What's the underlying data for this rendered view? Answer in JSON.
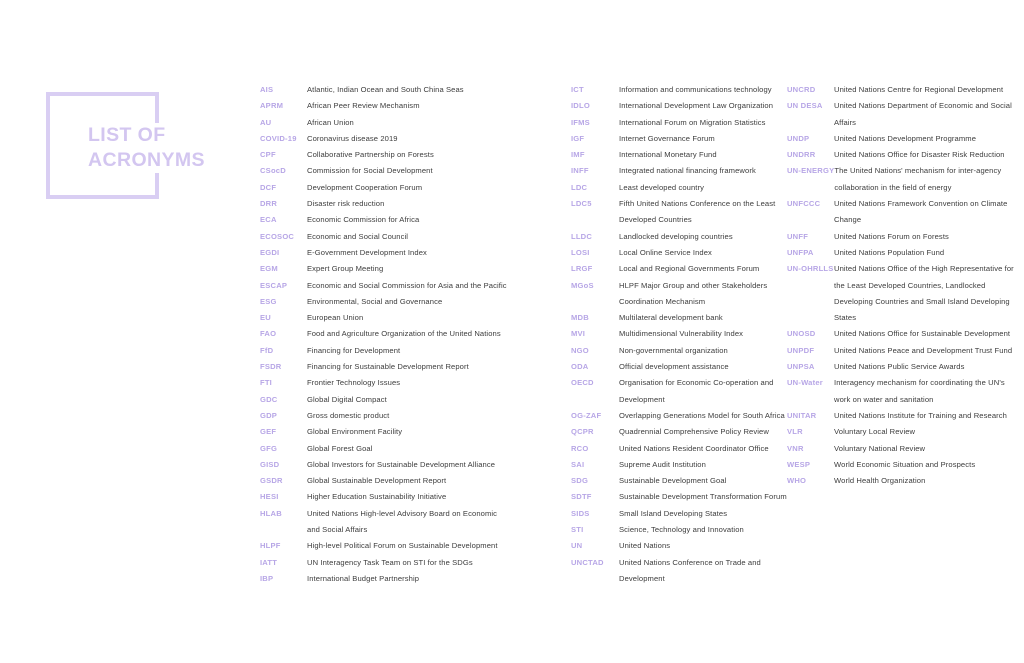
{
  "page": {
    "title_line1": "LIST OF",
    "title_line2": "ACRONYMS"
  },
  "colors": {
    "accent_acronym": "#b7a6e6",
    "logo_lavender": "#d9cef3",
    "definition_text": "#3d3d3d",
    "background": "#ffffff"
  },
  "columns": [
    {
      "entries": [
        {
          "acronym": "AIS",
          "definition": "Atlantic, Indian Ocean and South China Seas"
        },
        {
          "acronym": "APRM",
          "definition": "African Peer Review Mechanism"
        },
        {
          "acronym": "AU",
          "definition": "African Union"
        },
        {
          "acronym": "COVID-19",
          "definition": "Coronavirus disease 2019"
        },
        {
          "acronym": "CPF",
          "definition": "Collaborative Partnership on Forests"
        },
        {
          "acronym": "CSocD",
          "definition": "Commission for Social Development"
        },
        {
          "acronym": "DCF",
          "definition": "Development Cooperation Forum"
        },
        {
          "acronym": "DRR",
          "definition": "Disaster risk reduction"
        },
        {
          "acronym": "ECA",
          "definition": "Economic Commission for Africa"
        },
        {
          "acronym": "ECOSOC",
          "definition": "Economic and Social Council"
        },
        {
          "acronym": "EGDI",
          "definition": "E-Government Development Index"
        },
        {
          "acronym": "EGM",
          "definition": "Expert Group Meeting"
        },
        {
          "acronym": "ESCAP",
          "definition": "Economic and Social Commission for Asia and the Pacific"
        },
        {
          "acronym": "ESG",
          "definition": "Environmental, Social and Governance"
        },
        {
          "acronym": "EU",
          "definition": "European Union"
        },
        {
          "acronym": "FAO",
          "definition": "Food and Agriculture Organization of the United Nations"
        },
        {
          "acronym": "FfD",
          "definition": "Financing for Development"
        },
        {
          "acronym": "FSDR",
          "definition": "Financing for Sustainable Development Report"
        },
        {
          "acronym": "FTI",
          "definition": "Frontier Technology Issues"
        },
        {
          "acronym": "GDC",
          "definition": "Global Digital Compact"
        },
        {
          "acronym": "GDP",
          "definition": "Gross domestic product"
        },
        {
          "acronym": "GEF",
          "definition": "Global Environment Facility"
        },
        {
          "acronym": "GFG",
          "definition": "Global Forest Goal"
        },
        {
          "acronym": "GISD",
          "definition": "Global Investors for Sustainable Development Alliance"
        },
        {
          "acronym": "GSDR",
          "definition": "Global Sustainable Development Report"
        },
        {
          "acronym": "HESI",
          "definition": "Higher Education Sustainability Initiative"
        },
        {
          "acronym": "HLAB",
          "definition": "United Nations High-level Advisory Board on Economic and Social Affairs"
        },
        {
          "acronym": "HLPF",
          "definition": "High-level Political Forum on Sustainable Development"
        },
        {
          "acronym": "IATT",
          "definition": "UN Interagency Task Team on STI for the SDGs"
        },
        {
          "acronym": "IBP",
          "definition": "International Budget Partnership"
        }
      ]
    },
    {
      "entries": [
        {
          "acronym": "ICT",
          "definition": "Information and communications technology"
        },
        {
          "acronym": "IDLO",
          "definition": "International Development Law Organization"
        },
        {
          "acronym": "IFMS",
          "definition": "International Forum on Migration Statistics"
        },
        {
          "acronym": "IGF",
          "definition": "Internet Governance Forum"
        },
        {
          "acronym": "IMF",
          "definition": "International Monetary Fund"
        },
        {
          "acronym": "INFF",
          "definition": "Integrated national financing framework"
        },
        {
          "acronym": "LDC",
          "definition": "Least developed country"
        },
        {
          "acronym": "LDC5",
          "definition": "Fifth United Nations Conference on the Least Developed Countries"
        },
        {
          "acronym": "LLDC",
          "definition": "Landlocked developing countries"
        },
        {
          "acronym": "LOSI",
          "definition": "Local Online Service Index"
        },
        {
          "acronym": "LRGF",
          "definition": "Local and Regional Governments Forum"
        },
        {
          "acronym": "MGoS",
          "definition": "HLPF Major Group and other Stakeholders Coordination Mechanism"
        },
        {
          "acronym": "MDB",
          "definition": "Multilateral development bank"
        },
        {
          "acronym": "MVI",
          "definition": "Multidimensional Vulnerability Index"
        },
        {
          "acronym": "NGO",
          "definition": "Non-governmental organization"
        },
        {
          "acronym": "ODA",
          "definition": "Official development assistance"
        },
        {
          "acronym": "OECD",
          "definition": "Organisation for Economic Co-operation and Development"
        },
        {
          "acronym": "OG-ZAF",
          "definition": "Overlapping Generations Model for South Africa"
        },
        {
          "acronym": "QCPR",
          "definition": "Quadrennial Comprehensive Policy Review"
        },
        {
          "acronym": "RCO",
          "definition": "United Nations Resident Coordinator Office"
        },
        {
          "acronym": "SAI",
          "definition": "Supreme Audit Institution"
        },
        {
          "acronym": "SDG",
          "definition": "Sustainable Development Goal"
        },
        {
          "acronym": "SDTF",
          "definition": "Sustainable Development Transformation Forum"
        },
        {
          "acronym": "SIDS",
          "definition": "Small Island Developing States"
        },
        {
          "acronym": "STI",
          "definition": "Science, Technology and Innovation"
        },
        {
          "acronym": "UN",
          "definition": "United Nations"
        },
        {
          "acronym": "UNCTAD",
          "definition": "United Nations Conference on Trade and Development"
        }
      ]
    },
    {
      "entries": [
        {
          "acronym": "UNCRD",
          "definition": "United Nations Centre for Regional Development"
        },
        {
          "acronym": "UN DESA",
          "definition": "United Nations Department of Economic and Social Affairs"
        },
        {
          "acronym": "UNDP",
          "definition": "United Nations Development Programme"
        },
        {
          "acronym": "UNDRR",
          "definition": "United Nations Office for Disaster Risk Reduction"
        },
        {
          "acronym": "UN-ENERGY",
          "definition": "The United Nations' mechanism for inter-agency collaboration in the field of energy"
        },
        {
          "acronym": "UNFCCC",
          "definition": "United Nations Framework Convention on Climate Change"
        },
        {
          "acronym": "UNFF",
          "definition": "United Nations Forum on Forests"
        },
        {
          "acronym": "UNFPA",
          "definition": "United Nations Population Fund"
        },
        {
          "acronym": "UN-OHRLLS",
          "definition": "United Nations Office of the High Representative for the Least Developed Countries, Landlocked Developing Countries and Small Island Developing States"
        },
        {
          "acronym": "UNOSD",
          "definition": "United Nations Office for Sustainable Development"
        },
        {
          "acronym": "UNPDF",
          "definition": "United Nations Peace and Development Trust Fund"
        },
        {
          "acronym": "UNPSA",
          "definition": "United Nations Public Service Awards"
        },
        {
          "acronym": "UN-Water",
          "definition": "Interagency mechanism for coordinating the UN's work on water and sanitation"
        },
        {
          "acronym": "UNITAR",
          "definition": "United Nations Institute for Training and Research"
        },
        {
          "acronym": "VLR",
          "definition": "Voluntary Local Review"
        },
        {
          "acronym": "VNR",
          "definition": "Voluntary National Review"
        },
        {
          "acronym": "WESP",
          "definition": "World Economic Situation and Prospects"
        },
        {
          "acronym": "WHO",
          "definition": "World Health Organization"
        }
      ]
    }
  ]
}
